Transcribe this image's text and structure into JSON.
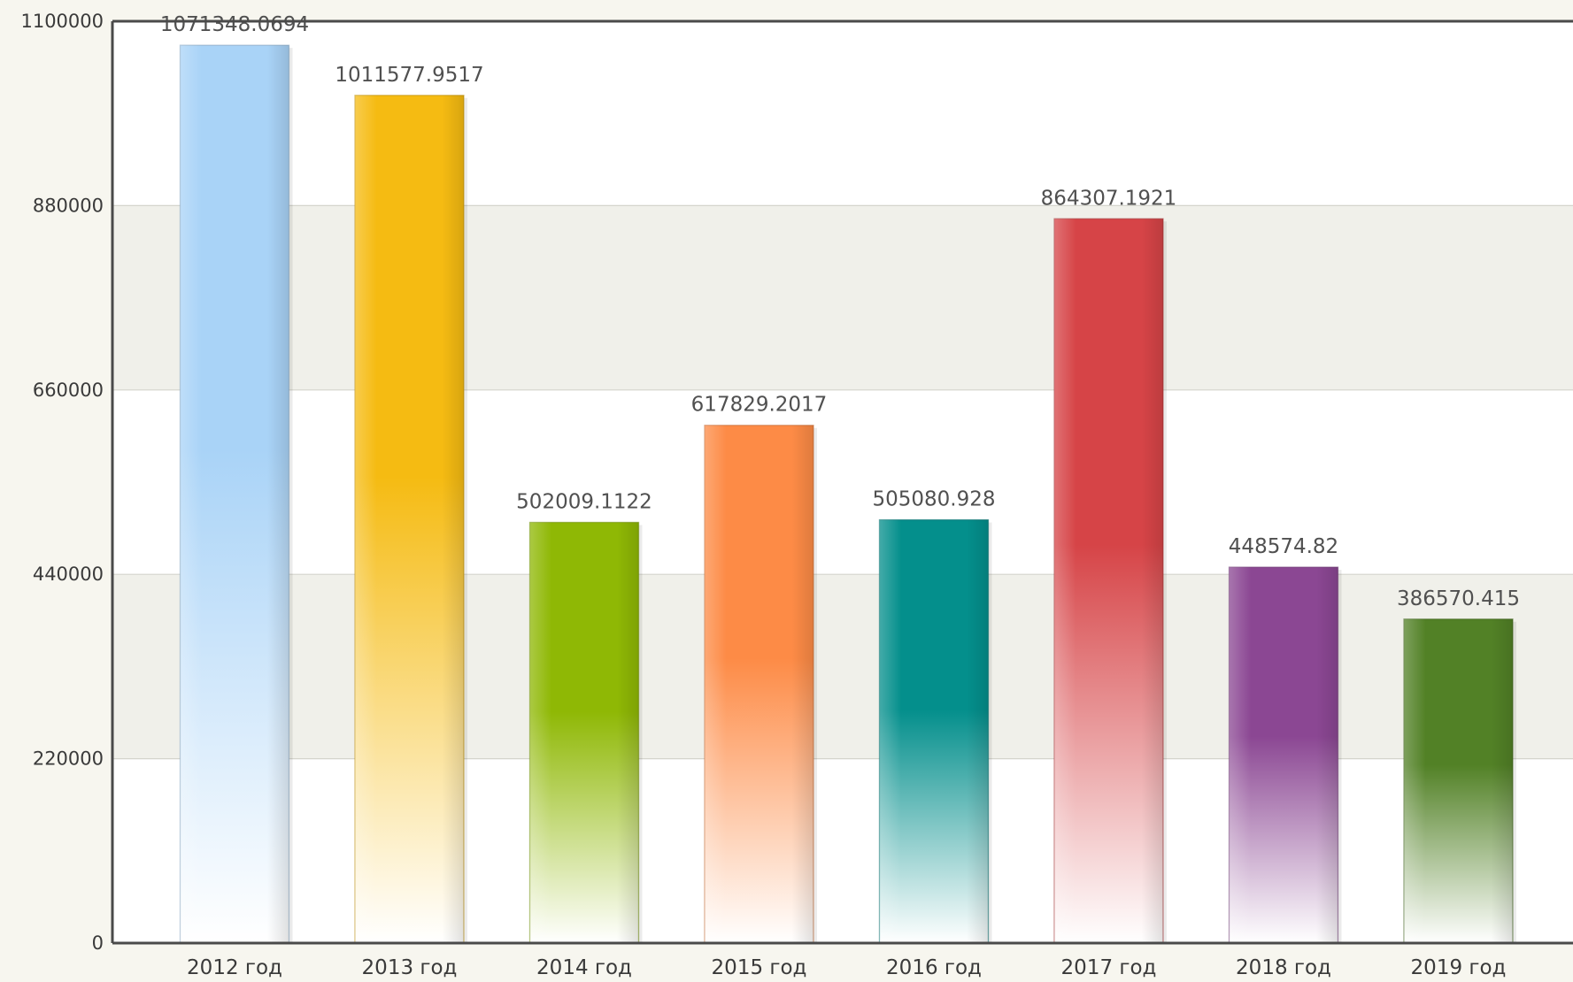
{
  "chart_data": {
    "type": "bar",
    "categories": [
      "2012 год",
      "2013 год",
      "2014 год",
      "2015 год",
      "2016 год",
      "2017 год",
      "2018 год",
      "2019 год"
    ],
    "values": [
      1071348.0694,
      1011577.9517,
      502009.1122,
      617829.2017,
      505080.928,
      864307.1921,
      448574.82,
      386570.415
    ],
    "data_labels": [
      "1071348.0694",
      "1011577.9517",
      "502009.1122",
      "617829.2017",
      "505080.928",
      "864307.1921",
      "448574.82",
      "386570.415"
    ],
    "colors": [
      "#a9d3f7",
      "#f5bb12",
      "#8fb805",
      "#fd8b46",
      "#048f8c",
      "#d64447",
      "#8b4793",
      "#528126"
    ],
    "ylim": [
      0,
      1100000
    ],
    "yticks": [
      0,
      220000,
      440000,
      660000,
      880000,
      1100000
    ],
    "ytick_labels": [
      "0",
      "220000",
      "440000",
      "660000",
      "880000",
      "1100000"
    ],
    "grid": true,
    "legend": "none",
    "title": "",
    "xlabel": "",
    "ylabel": ""
  }
}
